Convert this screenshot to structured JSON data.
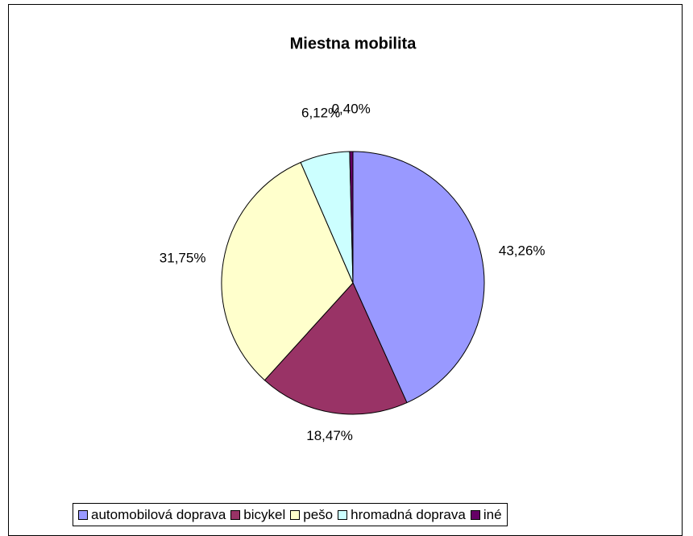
{
  "chart_data": {
    "type": "pie",
    "title": "Miestna mobilita",
    "categories": [
      "automobilová doprava",
      "bicykel",
      "pešo",
      "hromadná doprava",
      "iné"
    ],
    "values": [
      43.26,
      18.47,
      31.75,
      6.12,
      0.4
    ],
    "value_labels": [
      "43,26%",
      "18,47%",
      "31,75%",
      "6,12%",
      "0,40%"
    ],
    "colors": [
      "#9999ff",
      "#993366",
      "#ffffcc",
      "#ccffff",
      "#660066"
    ],
    "legend": "bottom"
  }
}
